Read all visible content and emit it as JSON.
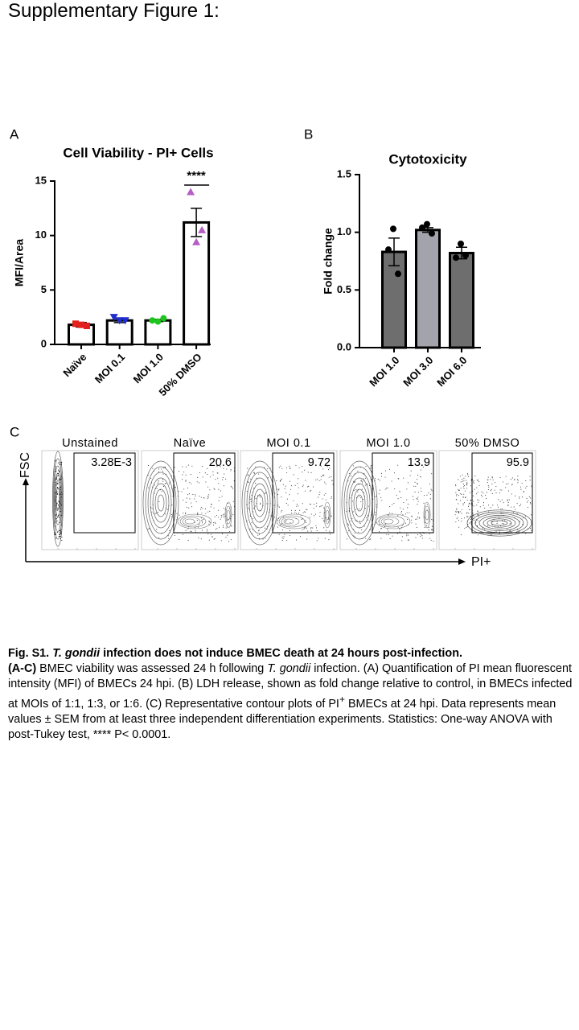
{
  "title": "Supplementary Figure 1:",
  "chart_data": [
    {
      "type": "bar",
      "panel": "A",
      "title": "Cell  Viability - PI+ Cells",
      "y_label": "MFI/Area",
      "categories": [
        "Naïve",
        "MOI 0.1",
        "MOI 1.0",
        "50% DMSO"
      ],
      "values": [
        1.8,
        2.2,
        2.2,
        11.2
      ],
      "errors": [
        0.2,
        0.2,
        0.1,
        1.3
      ],
      "points": [
        [
          1.9,
          1.7,
          1.8
        ],
        [
          2.5,
          2.2,
          2.2
        ],
        [
          2.2,
          2.4,
          2.1
        ],
        [
          14.0,
          10.5,
          9.4
        ]
      ],
      "point_colors": [
        "#e3201b",
        "#1f2ccf",
        "#1fc41f",
        "#b55ec6"
      ],
      "point_markers": [
        "square",
        "triangle-down",
        "circle",
        "triangle-up"
      ],
      "bar_colors": [
        "#ffffff",
        "#ffffff",
        "#ffffff",
        "#ffffff"
      ],
      "significance": "****",
      "ylim": [
        0,
        15
      ],
      "yticks": [
        0,
        5,
        10,
        15
      ]
    },
    {
      "type": "bar",
      "panel": "B",
      "title": "Cytotoxicity",
      "y_label": "Fold change",
      "categories": [
        "MOI 1.0",
        "MOI 3.0",
        "MOI 6.0"
      ],
      "values": [
        0.83,
        1.02,
        0.82
      ],
      "errors": [
        0.12,
        0.02,
        0.05
      ],
      "points": [
        [
          1.03,
          0.85,
          0.64
        ],
        [
          1.07,
          1.04,
          0.99
        ],
        [
          0.9,
          0.78,
          0.8
        ]
      ],
      "point_colors": [
        "#000000",
        "#000000",
        "#000000"
      ],
      "point_markers": [
        "circle",
        "circle",
        "circle"
      ],
      "bar_colors": [
        "#6e6e6e",
        "#a3a3ab",
        "#6e6e6e"
      ],
      "ylim": [
        0,
        1.5
      ],
      "yticks": [
        {
          "value": 0,
          "label": "0.0"
        },
        0.5,
        {
          "value": 1,
          "label": "1.0"
        },
        1.5
      ]
    }
  ],
  "panel_c": {
    "panel": "C",
    "y_axis": "FSC",
    "x_axis": "PI+",
    "plots": [
      {
        "label": "Unstained",
        "gate": "3.28E-3"
      },
      {
        "label": "Naïve",
        "gate": "20.6"
      },
      {
        "label": "MOI 0.1",
        "gate": "9.72"
      },
      {
        "label": "MOI 1.0",
        "gate": "13.9"
      },
      {
        "label": "50% DMSO",
        "gate": "95.9"
      }
    ]
  },
  "caption": {
    "heading": [
      "Fig. S1.",
      "T. gondii",
      "infection does not induce BMEC death at 24 hours post-infection."
    ],
    "body": [
      "(A-C)",
      "BMEC viability was assessed 24 h following",
      "T. gondii",
      "infection. (A) Quantification of PI mean fluorescent intensity (MFI) of BMECs 24 hpi. (B) LDH release, shown as fold change relative to control, in BMECs infected at MOIs of 1:1, 1:3, or 1:6. (C) Representative contour plots of PI",
      "+",
      "BMECs at 24 hpi. Data represents mean values ± SEM from at least three independent differentiation experiments. Statistics: One-way ANOVA with post-Tukey test, **** P&lt; 0.0001."
    ]
  }
}
